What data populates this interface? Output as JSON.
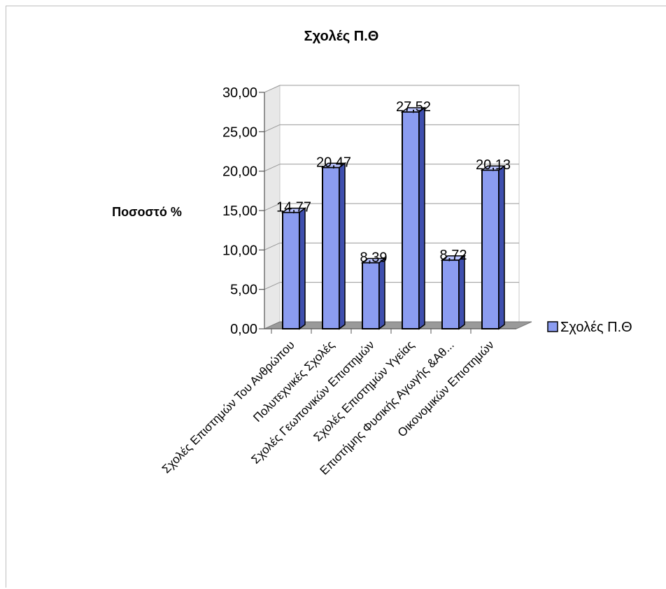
{
  "chart_data": {
    "type": "bar",
    "title": "Σχολές Π.Θ",
    "ylabel": "Ποσοστό %",
    "xlabel": "",
    "ylim": [
      0,
      30
    ],
    "yticks": [
      "0,00",
      "5,00",
      "10,00",
      "15,00",
      "20,00",
      "25,00",
      "30,00"
    ],
    "categories": [
      "Σχολές Επιστημών Του Ανθρώπου",
      "Πολυτεχνικές Σχολές",
      "Σχολές Γεωπονικών Επιστημών",
      "Σχολές Επιστημών Υγείας",
      "Επιστήμης Φυσικής Αγωγής &Αθ...",
      "Οικονομικών Επιστημών"
    ],
    "series": [
      {
        "name": "Σχολές Π.Θ",
        "values": [
          14.77,
          20.47,
          8.39,
          27.52,
          8.72,
          20.13
        ],
        "labels": [
          "14,77",
          "20,47",
          "8,39",
          "27,52",
          "8,72",
          "20,13"
        ]
      }
    ],
    "grid": true,
    "legend": "right",
    "colors": {
      "bar_front": "#8b9cf0",
      "bar_side": "#3f4fae",
      "bar_top": "#b9c3ff",
      "wall": "#e2e2e2",
      "floor": "#9a9a9a"
    }
  }
}
